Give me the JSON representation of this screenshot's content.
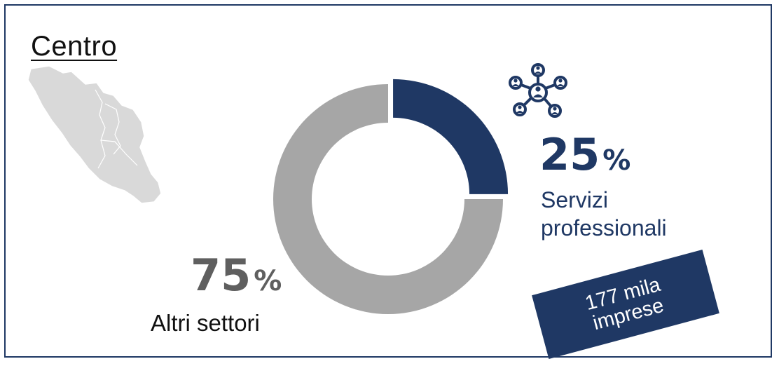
{
  "title": "Centro",
  "icons": {
    "map": "central-italy-map-icon",
    "sector": "network-people-icon"
  },
  "colors": {
    "primary": "#1f3864",
    "secondary": "#a6a6a6",
    "secondary_text": "#5f5f5f"
  },
  "chart_data": {
    "type": "pie",
    "donut": true,
    "slices": [
      {
        "label": "Servizi professionali",
        "value": 25,
        "color": "#1f3864"
      },
      {
        "label": "Altri settori",
        "value": 75,
        "color": "#a6a6a6"
      }
    ]
  },
  "callouts": {
    "primary": {
      "value": "25",
      "unit": "%",
      "label_line1": "Servizi",
      "label_line2": "professionali"
    },
    "secondary": {
      "value": "75",
      "unit": "%",
      "label": "Altri settori"
    }
  },
  "badge": {
    "line1": "177 mila",
    "line2": "imprese"
  }
}
